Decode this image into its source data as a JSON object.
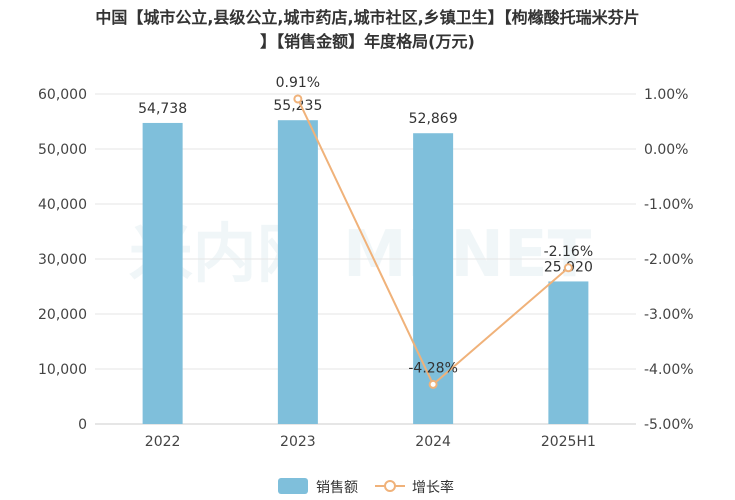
{
  "chart_data": {
    "type": "bar",
    "title_line1": "中国【城市公立,县级公立,城市药店,城市社区,乡镇卫生】【枸橼酸托瑞米芬片",
    "title_line2": "】【销售金额】年度格局(万元)",
    "categories": [
      "2022",
      "2023",
      "2024",
      "2025H1"
    ],
    "series": [
      {
        "name": "销售额",
        "type": "bar",
        "axis": "left",
        "values": [
          54738,
          55235,
          52869,
          25920
        ],
        "labels": [
          "54,738",
          "55,235",
          "52,869",
          "25,920"
        ],
        "color": "#7fbfdb"
      },
      {
        "name": "增长率",
        "type": "line",
        "axis": "right",
        "values": [
          null,
          0.91,
          -4.28,
          -2.16
        ],
        "labels": [
          "",
          "0.91%",
          "-4.28%",
          "-2.16%"
        ],
        "color": "#f0b27a"
      }
    ],
    "left_axis": {
      "ylim": [
        0,
        60000
      ],
      "ticks": [
        0,
        10000,
        20000,
        30000,
        40000,
        50000,
        60000
      ],
      "tick_labels": [
        "0",
        "10,000",
        "20,000",
        "30,000",
        "40,000",
        "50,000",
        "60,000"
      ]
    },
    "right_axis": {
      "ylim": [
        -5,
        1
      ],
      "ticks": [
        -5,
        -4,
        -3,
        -2,
        -1,
        0,
        1
      ],
      "tick_labels": [
        "-5.00%",
        "-4.00%",
        "-3.00%",
        "-2.00%",
        "-1.00%",
        "0.00%",
        "1.00%"
      ]
    },
    "grid": true,
    "legend_position": "bottom-center",
    "watermark": "米内网 MENET"
  }
}
